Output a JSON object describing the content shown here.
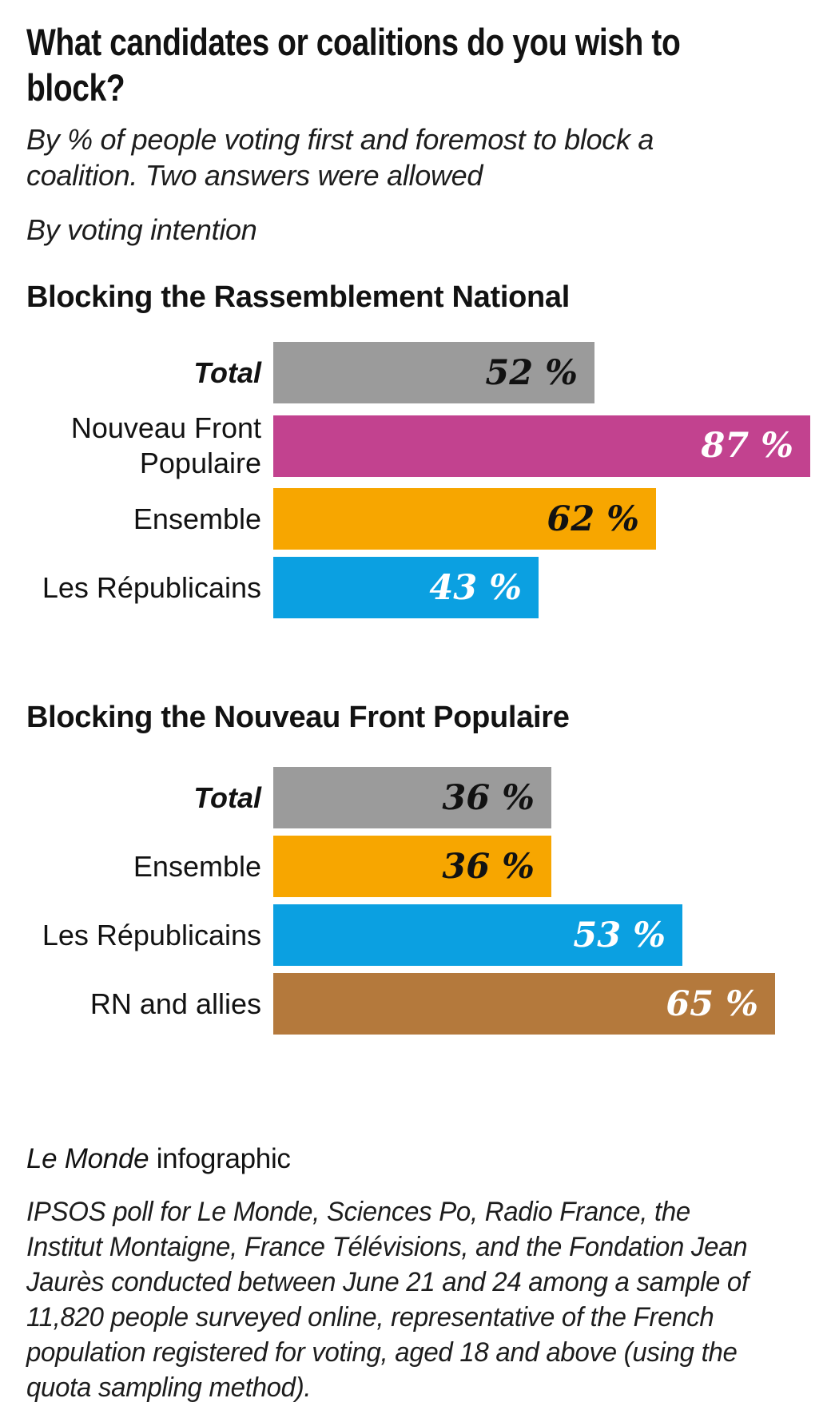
{
  "page": {
    "title_lines": [
      "What candidates or coalitions do you wish to",
      "block?"
    ],
    "subtitle": "By % of people voting first and foremost to block a coalition. Two answers were allowed",
    "byline": "By voting intention",
    "credit_italic": "Le Monde",
    "credit_rest": " infographic",
    "methodology_lines": [
      "IPSOS poll for Le Monde, Sciences Po, Radio France, the",
      "Institut Montaigne, France Télévisions, and the Fondation Jean",
      "Jaurès conducted between June 21 and 24 among a sample of",
      "11,820 people surveyed online, representative of the French",
      "population registered for voting, aged 18 and above (using the",
      "quota sampling method)."
    ]
  },
  "colors": {
    "text": "#121212",
    "total_gray": "#9b9b9b",
    "nfp_magenta": "#c2428f",
    "ensemble_orange": "#f7a600",
    "lr_blue": "#0ba0e1",
    "rn_brown": "#b4793c"
  },
  "chart_data": [
    {
      "type": "bar",
      "orientation": "horizontal",
      "title": "Blocking the Rassemblement National",
      "categories": [
        "Total",
        "Nouveau Front Populaire",
        "Ensemble",
        "Les Républicains"
      ],
      "values": [
        52,
        87,
        62,
        43
      ],
      "value_labels": [
        "52 %",
        "87 %",
        "62 %",
        "43 %"
      ],
      "unit": "%",
      "bar_colors": [
        "#9b9b9b",
        "#c2428f",
        "#f7a600",
        "#0ba0e1"
      ],
      "value_text_colors": [
        "#121212",
        "#ffffff",
        "#121212",
        "#ffffff"
      ],
      "category_emphasis": [
        true,
        false,
        false,
        false
      ],
      "xlim": [
        0,
        87
      ],
      "grid": false,
      "legend": false,
      "value_label_position": "inside-end"
    },
    {
      "type": "bar",
      "orientation": "horizontal",
      "title": "Blocking the Nouveau Front Populaire",
      "categories": [
        "Total",
        "Ensemble",
        "Les Républicains",
        "RN and allies"
      ],
      "values": [
        36,
        36,
        53,
        65
      ],
      "value_labels": [
        "36 %",
        "36 %",
        "53 %",
        "65 %"
      ],
      "unit": "%",
      "bar_colors": [
        "#9b9b9b",
        "#f7a600",
        "#0ba0e1",
        "#b4793c"
      ],
      "value_text_colors": [
        "#121212",
        "#121212",
        "#ffffff",
        "#ffffff"
      ],
      "category_emphasis": [
        true,
        false,
        false,
        false
      ],
      "xlim": [
        0,
        65
      ],
      "grid": false,
      "legend": false,
      "value_label_position": "inside-end"
    }
  ]
}
